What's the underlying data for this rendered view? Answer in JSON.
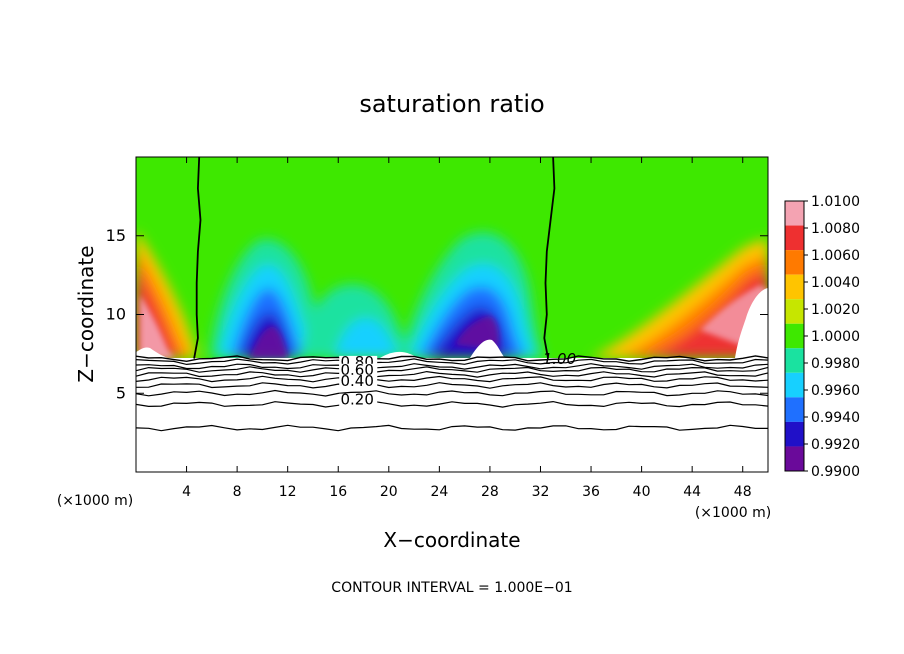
{
  "chart_data": {
    "type": "heatmap",
    "title": "saturation ratio",
    "xlabel": "X−coordinate",
    "ylabel": "Z−coordinate",
    "x_unit_label": "(×1000 m)",
    "footer": "CONTOUR INTERVAL = 1.000E−01",
    "xlim": [
      0,
      50
    ],
    "ylim": [
      0,
      20
    ],
    "x_ticks": [
      4,
      8,
      12,
      16,
      20,
      24,
      28,
      32,
      36,
      40,
      44,
      48
    ],
    "x_tick_labels": [
      "4",
      "8",
      "12",
      "16",
      "20",
      "24",
      "28",
      "32",
      "36",
      "40",
      "44",
      "48"
    ],
    "y_ticks": [
      5,
      10,
      15
    ],
    "y_tick_labels": [
      "5",
      "10",
      "15"
    ],
    "colorbar": {
      "levels": [
        "1.0100",
        "1.0080",
        "1.0060",
        "1.0040",
        "1.0020",
        "1.0000",
        "0.9980",
        "0.9960",
        "0.9940",
        "0.9920",
        "0.9900"
      ],
      "colors": [
        "#f4a3b2",
        "#ee3030",
        "#ff7a00",
        "#ffc400",
        "#c6e600",
        "#3ee800",
        "#1ae2a0",
        "#17d0ff",
        "#1f70ff",
        "#2010c8",
        "#6a0a9a"
      ]
    },
    "cloud_base_height": 7.2,
    "contour_labels": [
      {
        "text": "1.00",
        "x": 33.5,
        "y": 7.0
      },
      {
        "text": "0.80",
        "x": 17.5,
        "y": 6.8
      },
      {
        "text": "0.60",
        "x": 17.5,
        "y": 6.3
      },
      {
        "text": "0.40",
        "x": 17.5,
        "y": 5.6
      },
      {
        "text": "0.20",
        "x": 17.5,
        "y": 4.4
      }
    ],
    "contours_one": [
      [
        [
          5.0,
          20.0
        ],
        [
          4.9,
          18.0
        ],
        [
          5.1,
          16.0
        ],
        [
          4.9,
          14.0
        ],
        [
          4.8,
          12.0
        ],
        [
          4.8,
          10.0
        ],
        [
          4.9,
          8.5
        ],
        [
          4.6,
          7.2
        ]
      ],
      [
        [
          33.0,
          20.0
        ],
        [
          33.1,
          18.0
        ],
        [
          32.8,
          16.0
        ],
        [
          32.5,
          14.0
        ],
        [
          32.4,
          12.0
        ],
        [
          32.5,
          10.0
        ],
        [
          32.3,
          8.5
        ],
        [
          32.6,
          7.2
        ]
      ]
    ],
    "contour_levels_below": [
      {
        "level": "0.20",
        "height": 4.3
      },
      {
        "level": "0.40",
        "height": 5.5
      },
      {
        "level": "0.60",
        "height": 6.2
      },
      {
        "level": "0.80",
        "height": 6.7
      }
    ],
    "extra_contour_heights": [
      2.8,
      5.0,
      5.9,
      6.5,
      7.0
    ]
  }
}
